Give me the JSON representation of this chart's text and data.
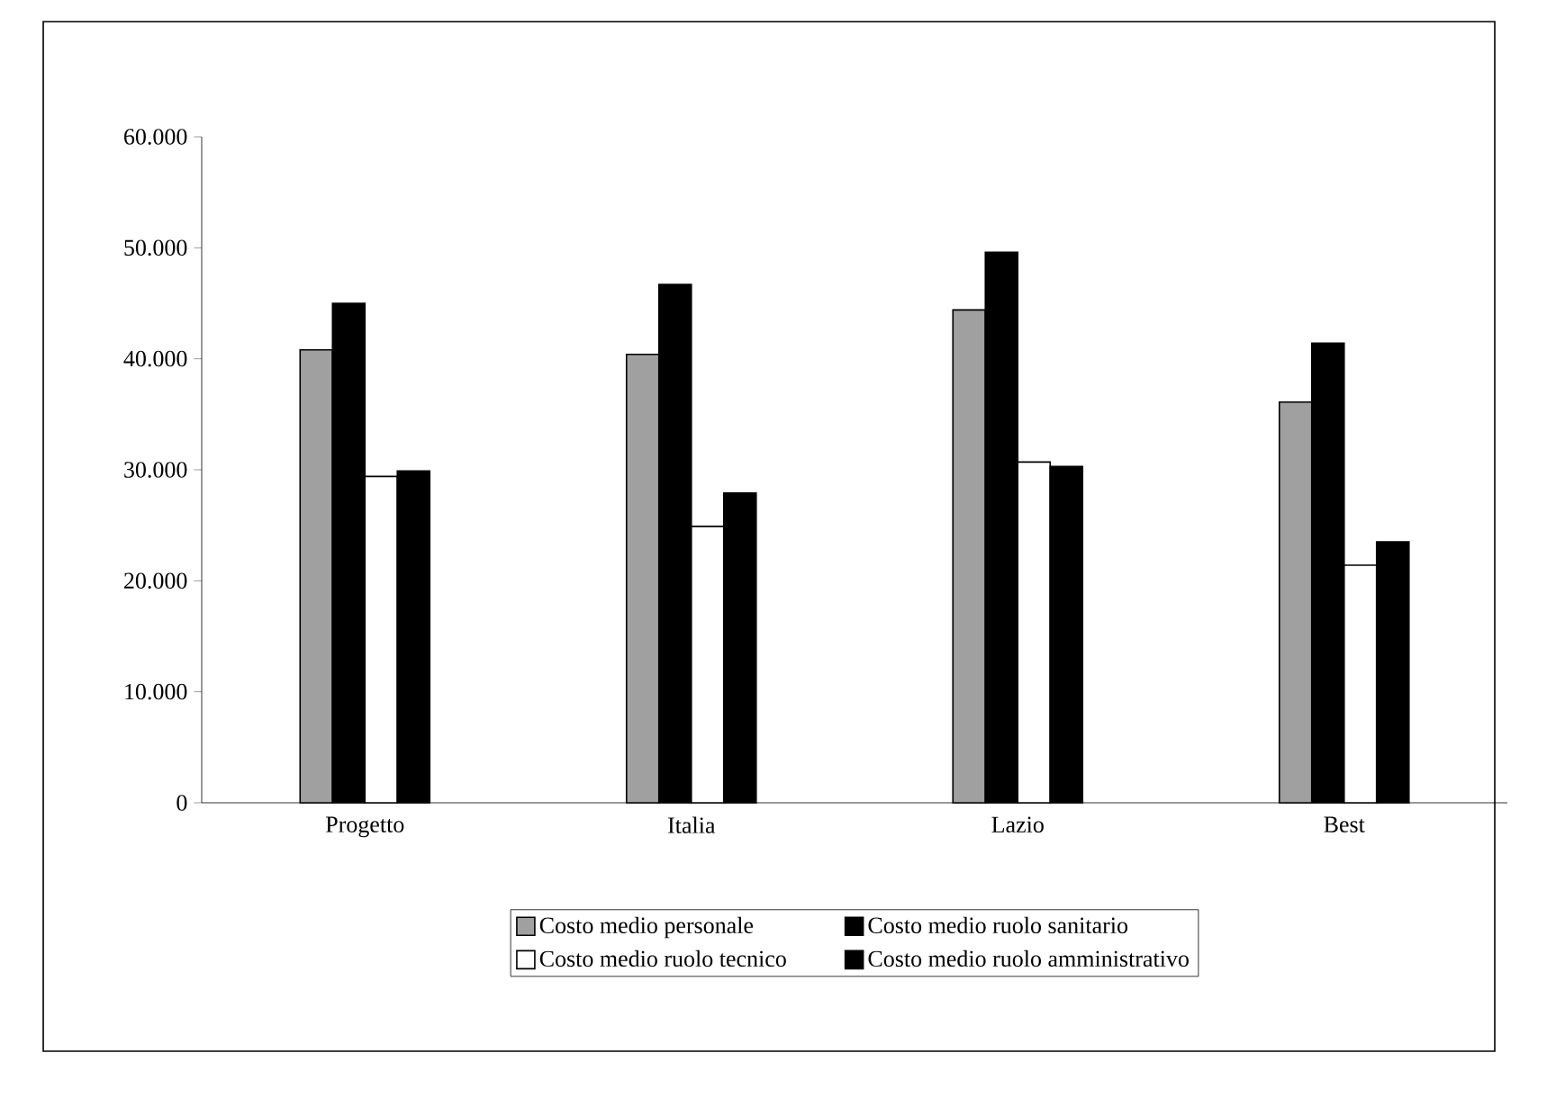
{
  "chart_data": {
    "type": "bar",
    "categories": [
      "Progetto",
      "Italia",
      "Lazio",
      "Best"
    ],
    "series": [
      {
        "name": "Costo medio personale",
        "color": "#a0a0a0",
        "values": [
          40800,
          40400,
          44400,
          36100
        ]
      },
      {
        "name": "Costo medio ruolo sanitario",
        "color": "#000000",
        "values": [
          45000,
          46700,
          49600,
          41400
        ]
      },
      {
        "name": "Costo medio ruolo tecnico",
        "color": "#ffffff",
        "values": [
          29400,
          24900,
          30700,
          21400
        ]
      },
      {
        "name": "Costo medio ruolo amministrativo",
        "color": "#000000",
        "values": [
          29900,
          27900,
          30300,
          23500
        ]
      }
    ],
    "ylim": [
      0,
      60000
    ],
    "yticks": [
      0,
      {
        "value": 10000,
        "label": "10.000"
      },
      {
        "value": 20000,
        "label": "20.000"
      },
      {
        "value": 30000,
        "label": "30.000"
      },
      {
        "value": 40000,
        "label": "40.000"
      },
      {
        "value": 50000,
        "label": "50.000"
      },
      {
        "value": 60000,
        "label": "60.000"
      }
    ],
    "legend": "bottom"
  }
}
